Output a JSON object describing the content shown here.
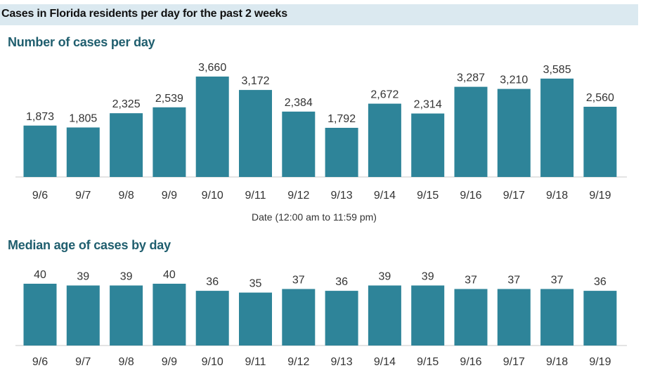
{
  "header": {
    "title": "Cases in Florida residents per day for the past 2 weeks"
  },
  "colors": {
    "bar": "#2e8499",
    "banner": "#dbe9f0",
    "panel_title": "#1f5e6e",
    "axis": "#c8c8c8",
    "label": "#333333"
  },
  "chart_data": [
    {
      "type": "bar",
      "title": "Number of cases per day",
      "xlabel": "Date (12:00 am to 11:59 pm)",
      "ylabel": "",
      "categories": [
        "9/6",
        "9/7",
        "9/8",
        "9/9",
        "9/10",
        "9/11",
        "9/12",
        "9/13",
        "9/14",
        "9/15",
        "9/16",
        "9/17",
        "9/18",
        "9/19"
      ],
      "values": [
        1873,
        1805,
        2325,
        2539,
        3660,
        3172,
        2384,
        1792,
        2672,
        2314,
        3287,
        3210,
        3585,
        2560
      ],
      "value_labels": [
        "1,873",
        "1,805",
        "2,325",
        "2,539",
        "3,660",
        "3,172",
        "2,384",
        "1,792",
        "2,672",
        "2,314",
        "3,287",
        "3,210",
        "3,585",
        "2,560"
      ],
      "ylim": [
        0,
        3660
      ],
      "grid": false,
      "legend": "none"
    },
    {
      "type": "bar",
      "title": "Median age of cases by day",
      "xlabel": "",
      "ylabel": "",
      "categories": [
        "9/6",
        "9/7",
        "9/8",
        "9/9",
        "9/10",
        "9/11",
        "9/12",
        "9/13",
        "9/14",
        "9/15",
        "9/16",
        "9/17",
        "9/18",
        "9/19"
      ],
      "values": [
        40,
        39,
        39,
        40,
        36,
        35,
        37,
        36,
        39,
        39,
        37,
        37,
        37,
        36
      ],
      "value_labels": [
        "40",
        "39",
        "39",
        "40",
        "36",
        "35",
        "37",
        "36",
        "39",
        "39",
        "37",
        "37",
        "37",
        "36"
      ],
      "ylim": [
        0,
        40
      ],
      "grid": false,
      "legend": "none"
    }
  ]
}
